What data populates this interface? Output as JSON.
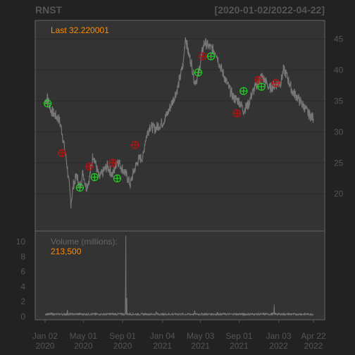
{
  "chart_data": {
    "type": "line",
    "title": "RNST",
    "date_range": "[2020-01-02/2022-04-22]",
    "last_label": "Last 32.220001",
    "volume_label": "Volume (millions):",
    "volume_value": "213,500",
    "x_ticks": [
      {
        "date": "2020-01-02",
        "line1": "Jan 02",
        "line2": "2020"
      },
      {
        "date": "2020-05-01",
        "line1": "May 01",
        "line2": "2020"
      },
      {
        "date": "2020-09-01",
        "line1": "Sep 01",
        "line2": "2020"
      },
      {
        "date": "2021-01-04",
        "line1": "Jan 04",
        "line2": "2021"
      },
      {
        "date": "2021-05-03",
        "line1": "May 03",
        "line2": "2021"
      },
      {
        "date": "2021-09-01",
        "line1": "Sep 01",
        "line2": "2021"
      },
      {
        "date": "2022-01-03",
        "line1": "Jan 03",
        "line2": "2022"
      },
      {
        "date": "2022-04-22",
        "line1": "Apr 22",
        "line2": "2022"
      }
    ],
    "price_axis": {
      "ticks": [
        20,
        25,
        30,
        35,
        40,
        45
      ],
      "ylim": [
        14,
        48
      ],
      "grid": true
    },
    "volume_axis": {
      "ticks": [
        0,
        2,
        4,
        6,
        8,
        10
      ],
      "ylim": [
        0,
        11
      ]
    },
    "price": [
      [
        "2020-01-02",
        35.0
      ],
      [
        "2020-01-10",
        35.6
      ],
      [
        "2020-01-20",
        33.5
      ],
      [
        "2020-02-01",
        32.8
      ],
      [
        "2020-02-15",
        32.0
      ],
      [
        "2020-02-24",
        30.0
      ],
      [
        "2020-03-01",
        28.0
      ],
      [
        "2020-03-10",
        25.0
      ],
      [
        "2020-03-16",
        22.0
      ],
      [
        "2020-03-23",
        18.5
      ],
      [
        "2020-03-31",
        21.5
      ],
      [
        "2020-04-10",
        23.0
      ],
      [
        "2020-04-20",
        21.0
      ],
      [
        "2020-04-30",
        23.5
      ],
      [
        "2020-05-10",
        21.0
      ],
      [
        "2020-05-20",
        22.5
      ],
      [
        "2020-06-01",
        26.5
      ],
      [
        "2020-06-10",
        24.5
      ],
      [
        "2020-06-20",
        22.5
      ],
      [
        "2020-07-01",
        23.5
      ],
      [
        "2020-07-15",
        24.5
      ],
      [
        "2020-08-01",
        23.0
      ],
      [
        "2020-08-15",
        25.5
      ],
      [
        "2020-09-01",
        24.0
      ],
      [
        "2020-09-15",
        22.8
      ],
      [
        "2020-09-25",
        21.5
      ],
      [
        "2020-10-05",
        23.5
      ],
      [
        "2020-10-20",
        25.5
      ],
      [
        "2020-11-05",
        26.0
      ],
      [
        "2020-11-10",
        28.5
      ],
      [
        "2020-11-25",
        31.0
      ],
      [
        "2020-12-10",
        30.5
      ],
      [
        "2021-01-04",
        31.5
      ],
      [
        "2021-01-20",
        33.0
      ],
      [
        "2021-02-05",
        35.0
      ],
      [
        "2021-02-20",
        37.0
      ],
      [
        "2021-03-10",
        41.0
      ],
      [
        "2021-03-17",
        45.5
      ],
      [
        "2021-03-25",
        43.0
      ],
      [
        "2021-04-05",
        41.0
      ],
      [
        "2021-04-15",
        38.0
      ],
      [
        "2021-04-26",
        39.0
      ],
      [
        "2021-05-05",
        42.0
      ],
      [
        "2021-05-15",
        44.5
      ],
      [
        "2021-05-25",
        44.0
      ],
      [
        "2021-06-05",
        43.5
      ],
      [
        "2021-06-20",
        43.0
      ],
      [
        "2021-07-01",
        41.0
      ],
      [
        "2021-07-20",
        38.5
      ],
      [
        "2021-08-01",
        37.0
      ],
      [
        "2021-08-15",
        35.5
      ],
      [
        "2021-09-01",
        35.0
      ],
      [
        "2021-09-15",
        33.5
      ],
      [
        "2021-10-01",
        34.5
      ],
      [
        "2021-10-10",
        36.0
      ],
      [
        "2021-10-25",
        37.5
      ],
      [
        "2021-11-10",
        39.0
      ],
      [
        "2021-11-25",
        38.0
      ],
      [
        "2021-12-05",
        37.0
      ],
      [
        "2021-12-20",
        37.5
      ],
      [
        "2022-01-10",
        38.0
      ],
      [
        "2022-01-18",
        40.0
      ],
      [
        "2022-01-25",
        39.5
      ],
      [
        "2022-02-05",
        38.0
      ],
      [
        "2022-02-15",
        36.5
      ],
      [
        "2022-02-25",
        36.0
      ],
      [
        "2022-03-10",
        35.0
      ],
      [
        "2022-03-25",
        34.0
      ],
      [
        "2022-04-05",
        33.0
      ],
      [
        "2022-04-15",
        32.5
      ],
      [
        "2022-04-22",
        32.2
      ]
    ],
    "volume_baseline": 0.2,
    "volume_spikes": [
      [
        "2020-09-11",
        10.8
      ],
      [
        "2020-09-10",
        3.5
      ],
      [
        "2020-09-14",
        2.5
      ],
      [
        "2020-03-12",
        0.9
      ],
      [
        "2020-12-15",
        0.7
      ],
      [
        "2021-04-15",
        0.8
      ],
      [
        "2021-12-20",
        1.6
      ],
      [
        "2021-06-25",
        0.6
      ]
    ],
    "signals": [
      {
        "date": "2020-01-10",
        "price": 34.6,
        "type": "buy"
      },
      {
        "date": "2020-02-24",
        "price": 26.6,
        "type": "sell"
      },
      {
        "date": "2020-04-20",
        "price": 21.0,
        "type": "buy"
      },
      {
        "date": "2020-05-20",
        "price": 24.4,
        "type": "sell"
      },
      {
        "date": "2020-06-05",
        "price": 22.7,
        "type": "buy"
      },
      {
        "date": "2020-08-01",
        "price": 25.0,
        "type": "sell"
      },
      {
        "date": "2020-08-15",
        "price": 22.5,
        "type": "buy"
      },
      {
        "date": "2020-10-10",
        "price": 27.9,
        "type": "sell"
      },
      {
        "date": "2021-04-26",
        "price": 39.6,
        "type": "buy"
      },
      {
        "date": "2021-05-10",
        "price": 42.2,
        "type": "sell"
      },
      {
        "date": "2021-06-05",
        "price": 42.2,
        "type": "buy"
      },
      {
        "date": "2021-08-25",
        "price": 33.0,
        "type": "sell"
      },
      {
        "date": "2021-09-15",
        "price": 36.6,
        "type": "buy"
      },
      {
        "date": "2021-11-01",
        "price": 38.4,
        "type": "sell"
      },
      {
        "date": "2021-11-10",
        "price": 37.3,
        "type": "buy"
      },
      {
        "date": "2021-12-25",
        "price": 37.9,
        "type": "sell"
      }
    ],
    "colors": {
      "background": "#222222",
      "panel": "#333333",
      "axis_text": "#555555",
      "price_line": "#777777",
      "volume_line": "#777777",
      "last_text": "#FF8C00",
      "buy": "#22CC22",
      "sell": "#BB1111"
    }
  }
}
